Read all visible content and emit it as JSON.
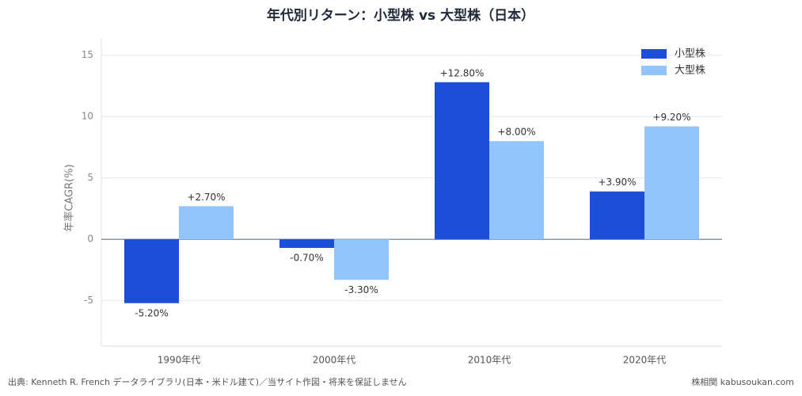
{
  "chart_data": {
    "type": "bar",
    "title": "年代別リターン：小型株 vs 大型株（日本）",
    "y_label": "年率CAGR(%)",
    "categories": [
      "1990年代",
      "2000年代",
      "2010年代",
      "2020年代"
    ],
    "series": [
      {
        "name": "小型株",
        "color": "#1d4ed8",
        "values": [
          -5.2,
          -0.7,
          12.8,
          3.9
        ],
        "value_labels": [
          "-5.20%",
          "-0.70%",
          "+12.80%",
          "+3.90%"
        ]
      },
      {
        "name": "大型株",
        "color": "#93c5fd",
        "values": [
          2.7,
          -3.3,
          8.0,
          9.2
        ],
        "value_labels": [
          "+2.70%",
          "-3.30%",
          "+8.00%",
          "+9.20%"
        ]
      }
    ],
    "ylim": [
      -8.7,
      16.4
    ],
    "yticks": [
      -5,
      0,
      5,
      10,
      15
    ],
    "grid": true,
    "legend": "upper right",
    "source": "出典: Kenneth R. French データライブラリ(日本・米ドル建て)／当サイト作図・将来を保証しません",
    "credit": "株相関 kabusoukan.com"
  }
}
